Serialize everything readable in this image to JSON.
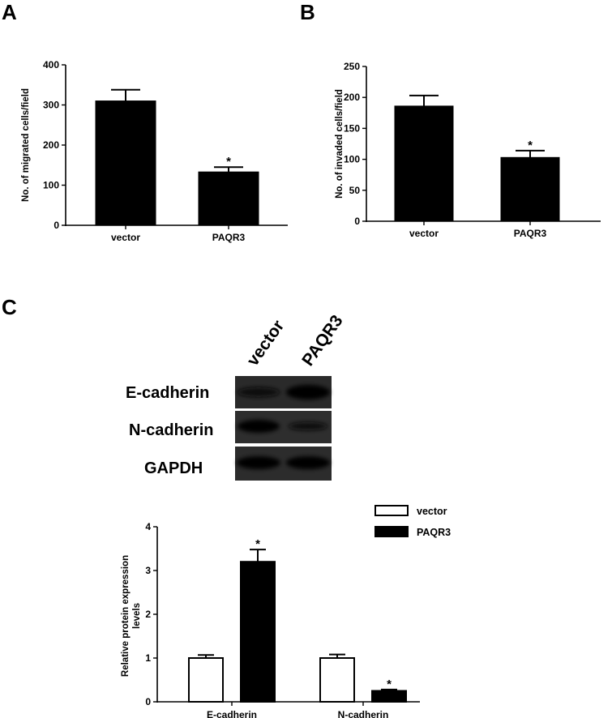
{
  "panels": {
    "a": "A",
    "b": "B",
    "c": "C"
  },
  "blot": {
    "lanes": [
      "vector",
      "PAQR3"
    ],
    "rows": [
      "E-cadherin",
      "N-cadherin",
      "GAPDH"
    ]
  },
  "chart_data": [
    {
      "type": "bar",
      "categories": [
        "vector",
        "PAQR3"
      ],
      "values": [
        310,
        133
      ],
      "errors": [
        28,
        12
      ],
      "significance": [
        "",
        "*"
      ],
      "ylabel": "No. of migrated cells/field",
      "ylim": [
        0,
        400
      ],
      "yticks": [
        0,
        100,
        200,
        300,
        400
      ],
      "colors": [
        "#000000",
        "#000000"
      ]
    },
    {
      "type": "bar",
      "categories": [
        "vector",
        "PAQR3"
      ],
      "values": [
        186,
        103
      ],
      "errors": [
        17,
        11
      ],
      "significance": [
        "",
        "*"
      ],
      "ylabel": "No. of invaded cells/field",
      "ylim": [
        0,
        250
      ],
      "yticks": [
        0,
        50,
        100,
        150,
        200,
        250
      ],
      "colors": [
        "#000000",
        "#000000"
      ]
    },
    {
      "type": "bar",
      "categories": [
        "E-cadherin",
        "N-cadherin"
      ],
      "series": [
        {
          "name": "vector",
          "values": [
            1.0,
            1.0
          ],
          "errors": [
            0.07,
            0.08
          ],
          "significance": [
            "",
            ""
          ],
          "fill": "#ffffff"
        },
        {
          "name": "PAQR3",
          "values": [
            3.2,
            0.25
          ],
          "errors": [
            0.28,
            0.03
          ],
          "significance": [
            "*",
            "*"
          ],
          "fill": "#000000"
        }
      ],
      "ylabel": "Relative protein expression levels",
      "ylim": [
        0,
        4
      ],
      "yticks": [
        0,
        1,
        2,
        3,
        4
      ],
      "legend_position": "top-right"
    }
  ]
}
